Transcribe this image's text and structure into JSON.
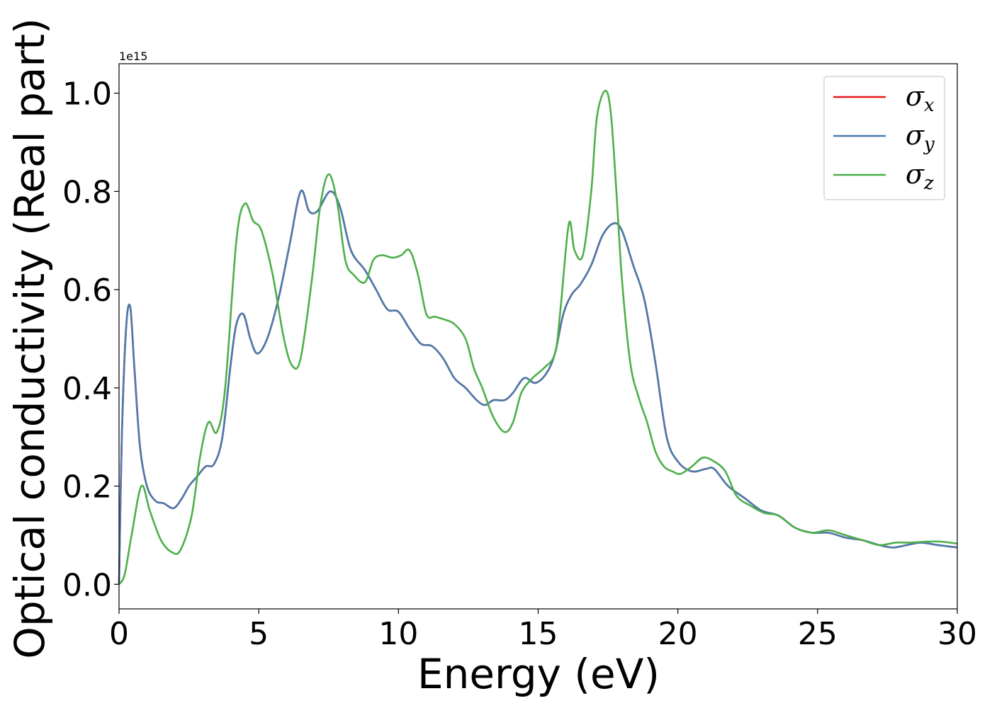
{
  "chart_data": {
    "type": "line",
    "xlabel": "Energy (eV)",
    "ylabel": "Optical conductivity (Real part)",
    "y_offset_label": "1e15",
    "xlim": [
      0,
      30
    ],
    "ylim": [
      -0.05,
      1.06
    ],
    "y_scale_factor": 1000000000000000.0,
    "xticks": [
      0,
      5,
      10,
      15,
      20,
      25,
      30
    ],
    "xtick_labels": [
      "0",
      "5",
      "10",
      "15",
      "20",
      "25",
      "30"
    ],
    "yticks": [
      0.0,
      0.2,
      0.4,
      0.6,
      0.8,
      1.0
    ],
    "ytick_labels": [
      "0.0",
      "0.2",
      "0.4",
      "0.6",
      "0.8",
      "1.0"
    ],
    "grid": false,
    "legend_position": "top-right",
    "series": [
      {
        "name": "σx",
        "symbol": "σ",
        "subscript": "x",
        "color": "#e41a1c",
        "x": [
          0,
          0.1,
          0.25,
          0.4,
          0.55,
          0.75,
          1.0,
          1.3,
          1.6,
          1.95,
          2.25,
          2.5,
          2.8,
          3.1,
          3.4,
          3.7,
          4.0,
          4.2,
          4.45,
          4.7,
          4.95,
          5.3,
          5.7,
          6.1,
          6.5,
          6.8,
          7.1,
          7.55,
          7.9,
          8.3,
          8.8,
          9.2,
          9.6,
          10.0,
          10.4,
          10.8,
          11.2,
          11.6,
          12.0,
          12.4,
          12.8,
          13.1,
          13.4,
          13.8,
          14.1,
          14.5,
          14.9,
          15.3,
          15.6,
          15.9,
          16.2,
          16.5,
          16.9,
          17.3,
          17.7,
          18.0,
          18.4,
          18.8,
          19.2,
          19.6,
          20.0,
          20.5,
          21.0,
          21.3,
          21.8,
          22.4,
          23.0,
          23.6,
          24.2,
          24.8,
          25.4,
          26.0,
          26.6,
          27.2,
          27.7,
          28.2,
          28.7,
          29.3,
          30.0
        ],
        "y": [
          0.0,
          0.3,
          0.52,
          0.565,
          0.44,
          0.28,
          0.2,
          0.17,
          0.165,
          0.155,
          0.175,
          0.2,
          0.22,
          0.24,
          0.245,
          0.3,
          0.45,
          0.53,
          0.55,
          0.5,
          0.47,
          0.5,
          0.58,
          0.69,
          0.8,
          0.76,
          0.76,
          0.8,
          0.77,
          0.68,
          0.64,
          0.6,
          0.56,
          0.555,
          0.52,
          0.49,
          0.485,
          0.46,
          0.42,
          0.4,
          0.375,
          0.365,
          0.375,
          0.375,
          0.39,
          0.42,
          0.41,
          0.43,
          0.47,
          0.55,
          0.59,
          0.61,
          0.65,
          0.71,
          0.735,
          0.72,
          0.65,
          0.58,
          0.45,
          0.3,
          0.25,
          0.23,
          0.235,
          0.235,
          0.2,
          0.175,
          0.15,
          0.14,
          0.115,
          0.105,
          0.105,
          0.095,
          0.09,
          0.08,
          0.075,
          0.08,
          0.085,
          0.08,
          0.075
        ]
      },
      {
        "name": "σy",
        "symbol": "σ",
        "subscript": "y",
        "color": "#4a7bac",
        "x": [
          0,
          0.1,
          0.25,
          0.4,
          0.55,
          0.75,
          1.0,
          1.3,
          1.6,
          1.95,
          2.25,
          2.5,
          2.8,
          3.1,
          3.4,
          3.7,
          4.0,
          4.2,
          4.45,
          4.7,
          4.95,
          5.3,
          5.7,
          6.1,
          6.5,
          6.8,
          7.1,
          7.55,
          7.9,
          8.3,
          8.8,
          9.2,
          9.6,
          10.0,
          10.4,
          10.8,
          11.2,
          11.6,
          12.0,
          12.4,
          12.8,
          13.1,
          13.4,
          13.8,
          14.1,
          14.5,
          14.9,
          15.3,
          15.6,
          15.9,
          16.2,
          16.5,
          16.9,
          17.3,
          17.7,
          18.0,
          18.4,
          18.8,
          19.2,
          19.6,
          20.0,
          20.5,
          21.0,
          21.3,
          21.8,
          22.4,
          23.0,
          23.6,
          24.2,
          24.8,
          25.4,
          26.0,
          26.6,
          27.2,
          27.7,
          28.2,
          28.7,
          29.3,
          30.0
        ],
        "y": [
          0.0,
          0.3,
          0.52,
          0.565,
          0.44,
          0.28,
          0.2,
          0.17,
          0.165,
          0.155,
          0.175,
          0.2,
          0.22,
          0.24,
          0.245,
          0.3,
          0.45,
          0.53,
          0.55,
          0.5,
          0.47,
          0.5,
          0.58,
          0.69,
          0.8,
          0.76,
          0.76,
          0.8,
          0.77,
          0.68,
          0.64,
          0.6,
          0.56,
          0.555,
          0.52,
          0.49,
          0.485,
          0.46,
          0.42,
          0.4,
          0.375,
          0.365,
          0.375,
          0.375,
          0.39,
          0.42,
          0.41,
          0.43,
          0.47,
          0.55,
          0.59,
          0.61,
          0.65,
          0.71,
          0.735,
          0.72,
          0.65,
          0.58,
          0.45,
          0.3,
          0.25,
          0.23,
          0.235,
          0.235,
          0.2,
          0.175,
          0.15,
          0.14,
          0.115,
          0.105,
          0.105,
          0.095,
          0.09,
          0.08,
          0.075,
          0.08,
          0.085,
          0.08,
          0.075
        ]
      },
      {
        "name": "σz",
        "symbol": "σ",
        "subscript": "z",
        "color": "#4daf4a",
        "x": [
          0,
          0.2,
          0.45,
          0.8,
          1.1,
          1.5,
          1.9,
          2.2,
          2.6,
          2.9,
          3.2,
          3.5,
          3.8,
          4.2,
          4.5,
          4.8,
          5.1,
          5.5,
          5.9,
          6.2,
          6.5,
          6.9,
          7.2,
          7.5,
          7.8,
          8.1,
          8.4,
          8.8,
          9.1,
          9.4,
          9.8,
          10.1,
          10.4,
          10.7,
          11.0,
          11.3,
          11.6,
          12.0,
          12.4,
          12.7,
          13.0,
          13.4,
          13.8,
          14.1,
          14.4,
          14.8,
          15.2,
          15.6,
          15.8,
          16.1,
          16.3,
          16.6,
          16.9,
          17.1,
          17.4,
          17.6,
          17.8,
          18.0,
          18.3,
          18.6,
          18.9,
          19.2,
          19.5,
          19.8,
          20.1,
          20.5,
          20.9,
          21.3,
          21.7,
          22.1,
          22.6,
          23.1,
          23.6,
          24.2,
          24.8,
          25.4,
          26.0,
          26.6,
          27.2,
          27.8,
          28.3,
          28.9,
          29.4,
          30.0
        ],
        "y": [
          0.0,
          0.02,
          0.1,
          0.2,
          0.15,
          0.09,
          0.065,
          0.07,
          0.14,
          0.26,
          0.33,
          0.31,
          0.4,
          0.7,
          0.775,
          0.74,
          0.72,
          0.63,
          0.5,
          0.445,
          0.46,
          0.62,
          0.77,
          0.835,
          0.78,
          0.66,
          0.63,
          0.615,
          0.66,
          0.67,
          0.665,
          0.67,
          0.68,
          0.63,
          0.55,
          0.545,
          0.54,
          0.53,
          0.5,
          0.44,
          0.4,
          0.34,
          0.31,
          0.33,
          0.39,
          0.42,
          0.44,
          0.47,
          0.56,
          0.735,
          0.68,
          0.67,
          0.8,
          0.95,
          1.005,
          0.96,
          0.8,
          0.62,
          0.45,
          0.38,
          0.33,
          0.27,
          0.24,
          0.23,
          0.225,
          0.24,
          0.258,
          0.25,
          0.23,
          0.18,
          0.16,
          0.145,
          0.14,
          0.115,
          0.105,
          0.11,
          0.1,
          0.09,
          0.08,
          0.085,
          0.085,
          0.087,
          0.087,
          0.083
        ]
      }
    ]
  }
}
